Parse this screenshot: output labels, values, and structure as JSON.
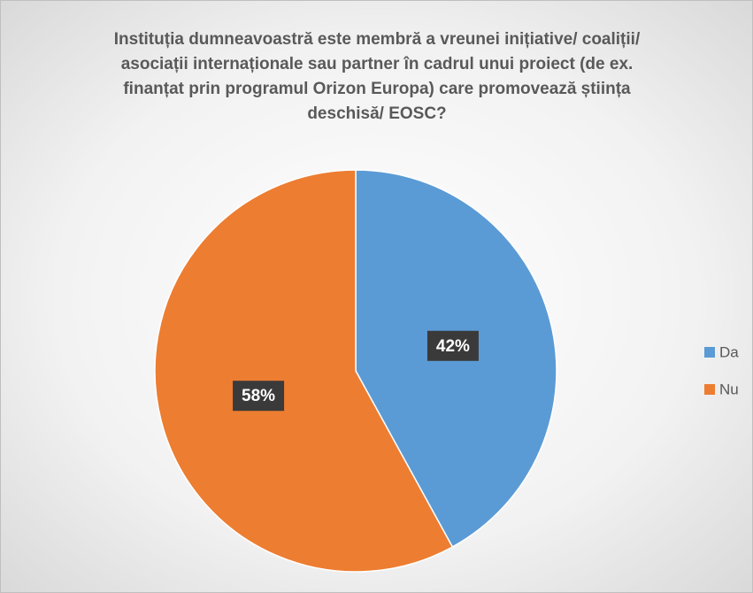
{
  "chart_data": {
    "type": "pie",
    "title": "Instituția dumneavoastră este membră a vreunei inițiative/ coaliții/ asociații internaționale sau partner în cadrul unui proiect (de ex. finanțat prin programul Orizon Europa) care promovează știința deschisă/ EOSC?",
    "categories": [
      "Da",
      "Nu"
    ],
    "values": [
      42,
      58
    ],
    "value_labels": [
      "42%",
      "58%"
    ],
    "colors": [
      "#5b9bd5",
      "#ed7d31"
    ],
    "legend": "right"
  }
}
